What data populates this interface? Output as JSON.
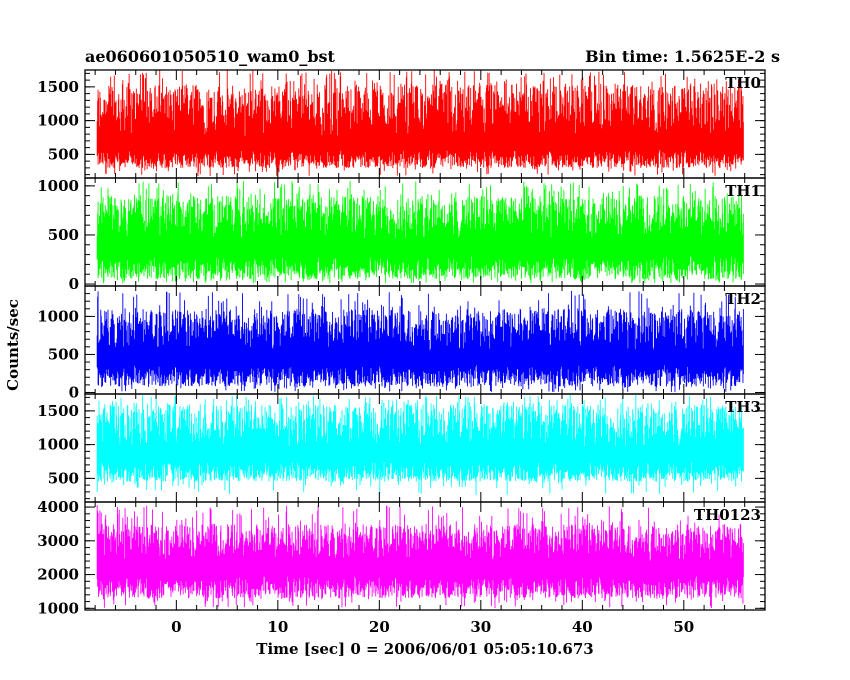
{
  "header": {
    "title": "ae060601050510_wam0_bst",
    "bin_time": "Bin time: 1.5625E-2 s"
  },
  "axes": {
    "xlabel": "Time [sec] 0 = 2006/06/01 05:05:10.673",
    "ylabel": "Counts/sec"
  },
  "chart_data": {
    "type": "line",
    "title": "ae060601050510_wam0_bst",
    "subtitle": "Bin time: 1.5625E-2 s",
    "xlabel": "Time [sec] 0 = 2006/06/01 05:05:10.673",
    "ylabel": "Counts/sec",
    "xlim": [
      -9,
      58
    ],
    "x_ticks": [
      0,
      10,
      20,
      30,
      40,
      50
    ],
    "data_range_x": [
      -7.8,
      55.9
    ],
    "grid": false,
    "panels": [
      {
        "name": "TH0",
        "color": "#ff0000",
        "ylim": [
          150,
          1750
        ],
        "y_ticks": [
          500,
          1000,
          1500
        ],
        "baseline": 750,
        "noise_low": 300,
        "noise_high": 1550,
        "spike_max": 1750,
        "min_floor": 180
      },
      {
        "name": "TH1",
        "color": "#00ff00",
        "ylim": [
          -20,
          1080
        ],
        "y_ticks": [
          0,
          500,
          1000
        ],
        "baseline": 450,
        "noise_low": 50,
        "noise_high": 900,
        "spike_max": 1050,
        "min_floor": 5
      },
      {
        "name": "TH2",
        "color": "#0000ff",
        "ylim": [
          -20,
          1400
        ],
        "y_ticks": [
          0,
          500,
          1000
        ],
        "baseline": 550,
        "noise_low": 80,
        "noise_high": 1100,
        "spike_max": 1350,
        "min_floor": 5
      },
      {
        "name": "TH3",
        "color": "#00ffff",
        "ylim": [
          150,
          1750
        ],
        "y_ticks": [
          500,
          1000,
          1500
        ],
        "baseline": 950,
        "noise_low": 450,
        "noise_high": 1600,
        "spike_max": 1750,
        "min_floor": 250
      },
      {
        "name": "TH0123",
        "color": "#ff00ff",
        "ylim": [
          950,
          4150
        ],
        "y_ticks": [
          1000,
          2000,
          3000,
          4000
        ],
        "baseline": 2400,
        "noise_low": 1300,
        "noise_high": 3500,
        "spike_max": 4100,
        "min_floor": 1000
      }
    ]
  }
}
